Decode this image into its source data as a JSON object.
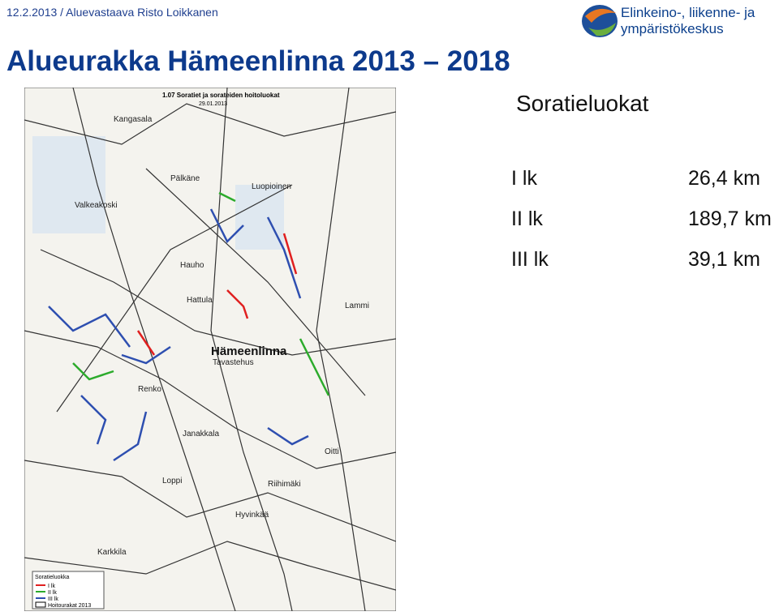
{
  "header": {
    "byline": "12.2.2013 / Aluevastaava Risto Loikkanen",
    "logo_line1": "Elinkeino-, liikenne- ja",
    "logo_line2": "ympäristökeskus"
  },
  "title": "Alueurakka Hämeenlinna 2013 – 2018",
  "map": {
    "title": "1.07 Soratiet ja sorateiden hoitoluokat",
    "date": "29.01.2013",
    "places": [
      "Kangasala",
      "Pälkäne",
      "Valkeakoski",
      "Luopioinen",
      "Hauho",
      "Hämeenlinna",
      "Tavastehus",
      "Renko",
      "Loppi",
      "Riihimäki",
      "Hyvinkää",
      "Lammi",
      "Hattula",
      "Janakkala",
      "Oitti",
      "Karkkila"
    ],
    "legend": {
      "title": "Soratieluokka",
      "items": [
        "I lk",
        "II lk",
        "III lk",
        "Hoitourakat 2013"
      ]
    }
  },
  "summary": {
    "heading": "Soratieluokat",
    "rows": [
      [
        "I lk",
        "26,4 km"
      ],
      [
        "II lk",
        "189,7 km"
      ],
      [
        "III lk",
        "39,1 km"
      ]
    ]
  }
}
